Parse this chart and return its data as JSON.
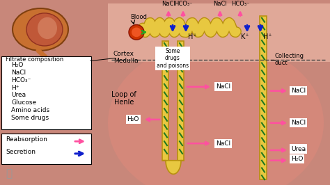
{
  "bg_color": "#c8877a",
  "cortex_bg": "#e8b8a8",
  "tube_color": "#e8c840",
  "tube_edge": "#b89010",
  "pink_arrow": "#ff50a0",
  "blue_arrow": "#1020cc",
  "green_mark": "#207820",
  "box_color": "#ffffff",
  "text_color": "#000000",
  "filtrate_items": [
    "H₂O",
    "NaCl",
    "HCO₃⁻",
    "H⁺",
    "Urea",
    "Glucose",
    "Amino acids",
    "Some drugs"
  ],
  "legend_reabsorption": "Reabsorption",
  "legend_secretion": "Secretion",
  "cortex_label": "Cortex",
  "medulla_label": "Medulla",
  "loop_label": "Loop of\nHenle",
  "collecting_label": "Collecting\nduct",
  "blood_label": "Blood",
  "filtrate_label": "Filtrate composition",
  "nacl_label": "NaCl",
  "hco3_label": "HCO₃⁻",
  "h_label": "H⁺",
  "k_label": "K⁺",
  "h2o_label": "H₂O",
  "urea_label": "Urea",
  "some_drugs_label": "Some\ndrugs\nand poisons"
}
